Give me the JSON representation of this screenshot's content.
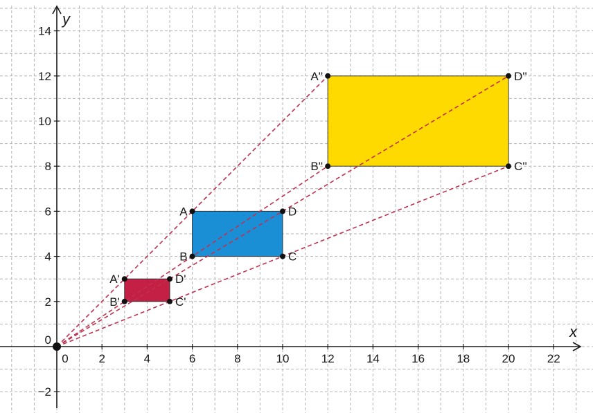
{
  "axes": {
    "x_label": "x",
    "y_label": "y",
    "x_ticks": [
      "0",
      "2",
      "4",
      "6",
      "8",
      "10",
      "12",
      "14",
      "16",
      "18",
      "20",
      "22"
    ],
    "y_ticks": [
      "−2",
      "0",
      "2",
      "4",
      "6",
      "8",
      "10",
      "12",
      "14"
    ]
  },
  "colors": {
    "grid": "#b4b4b4",
    "axis": "#1a1a1a",
    "rays": "#c0304f",
    "small_rect": "#c41f45",
    "mid_rect": "#1b8fd6",
    "large_rect": "#ffda00"
  },
  "origin": {
    "x": 0,
    "y": 0
  },
  "rectangles": [
    {
      "name": "small",
      "color": "#c41f45",
      "vertices": [
        {
          "label": "A'",
          "x": 3,
          "y": 3
        },
        {
          "label": "D'",
          "x": 5,
          "y": 3
        },
        {
          "label": "C'",
          "x": 5,
          "y": 2
        },
        {
          "label": "B'",
          "x": 3,
          "y": 2
        }
      ]
    },
    {
      "name": "original",
      "color": "#1b8fd6",
      "vertices": [
        {
          "label": "A",
          "x": 6,
          "y": 6
        },
        {
          "label": "D",
          "x": 10,
          "y": 6
        },
        {
          "label": "C",
          "x": 10,
          "y": 4
        },
        {
          "label": "B",
          "x": 6,
          "y": 4
        }
      ]
    },
    {
      "name": "large",
      "color": "#ffda00",
      "vertices": [
        {
          "label": "A''",
          "x": 12,
          "y": 12
        },
        {
          "label": "D''",
          "x": 20,
          "y": 12
        },
        {
          "label": "C''",
          "x": 20,
          "y": 8
        },
        {
          "label": "B''",
          "x": 12,
          "y": 8
        }
      ]
    }
  ],
  "rays_to": [
    {
      "x": 12,
      "y": 12
    },
    {
      "x": 20,
      "y": 12
    },
    {
      "x": 20,
      "y": 8
    },
    {
      "x": 12,
      "y": 8
    }
  ]
}
